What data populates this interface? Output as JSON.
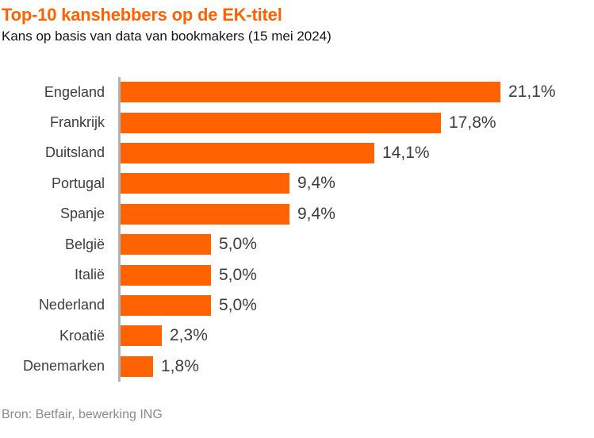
{
  "header": {
    "title": "Top-10 kanshebbers op de EK-titel",
    "subtitle": "Kans op basis van data van bookmakers (15 mei 2024)"
  },
  "chart_data": {
    "type": "bar",
    "orientation": "horizontal",
    "title": "Top-10 kanshebbers op de EK-titel",
    "subtitle": "Kans op basis van data van bookmakers (15 mei 2024)",
    "categories": [
      "Engeland",
      "Frankrijk",
      "Duitsland",
      "Portugal",
      "Spanje",
      "België",
      "Italië",
      "Nederland",
      "Kroatië",
      "Denemarken"
    ],
    "values": [
      21.1,
      17.8,
      14.1,
      9.4,
      9.4,
      5.0,
      5.0,
      5.0,
      2.3,
      1.8
    ],
    "value_labels": [
      "21,1%",
      "17,8%",
      "14,1%",
      "9,4%",
      "9,4%",
      "5,0%",
      "5,0%",
      "5,0%",
      "2,3%",
      "1,8%"
    ],
    "unit": "%",
    "xlabel": "",
    "ylabel": "",
    "xlim": [
      0,
      25
    ],
    "grid": false,
    "legend": false,
    "value_label_position": "end-of-bar",
    "bar_color": "#FF6200",
    "axis_line_color": "#b3b3b3"
  },
  "footer": {
    "source": "Bron: Betfair, bewerking ING"
  },
  "colors": {
    "accent_orange": "#FF6200",
    "text_dark": "#3d3d3d",
    "subtitle_text": "#141414",
    "source_text": "#8a8a8a",
    "axis_gray": "#b3b3b3",
    "background": "#ffffff"
  }
}
